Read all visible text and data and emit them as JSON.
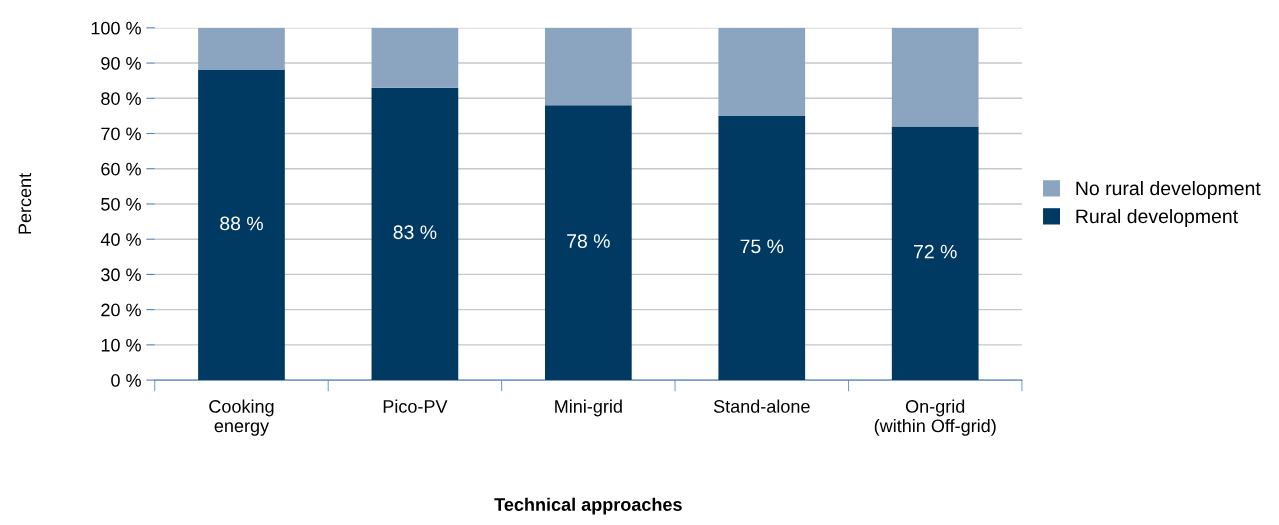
{
  "chart_data": {
    "type": "bar",
    "stacked": true,
    "xlabel": "Technical approaches",
    "ylabel": "Percent",
    "categories": [
      "Cooking\nenergy",
      "Pico-PV",
      "Mini-grid",
      "Stand-alone",
      "On-grid\n(within Off-grid)"
    ],
    "series": [
      {
        "name": "Rural development",
        "color": "#003a63",
        "values": [
          88,
          83,
          78,
          75,
          72
        ],
        "value_labels": [
          "88 %",
          "83 %",
          "78 %",
          "75 %",
          "72 %"
        ]
      },
      {
        "name": "No rural development",
        "color": "#8ba5c1",
        "values": [
          12,
          17,
          22,
          25,
          28
        ]
      }
    ],
    "ylim": [
      0,
      100
    ],
    "yticks": [
      {
        "value": 0,
        "label": "0 %"
      },
      {
        "value": 10,
        "label": "10 %"
      },
      {
        "value": 20,
        "label": "20 %"
      },
      {
        "value": 30,
        "label": "30 %"
      },
      {
        "value": 40,
        "label": "40 %"
      },
      {
        "value": 50,
        "label": "50 %"
      },
      {
        "value": 60,
        "label": "60 %"
      },
      {
        "value": 70,
        "label": "70 %"
      },
      {
        "value": 80,
        "label": "80 %"
      },
      {
        "value": 90,
        "label": "90 %"
      },
      {
        "value": 100,
        "label": "100 %"
      }
    ],
    "grid": "y",
    "legend": "right"
  }
}
